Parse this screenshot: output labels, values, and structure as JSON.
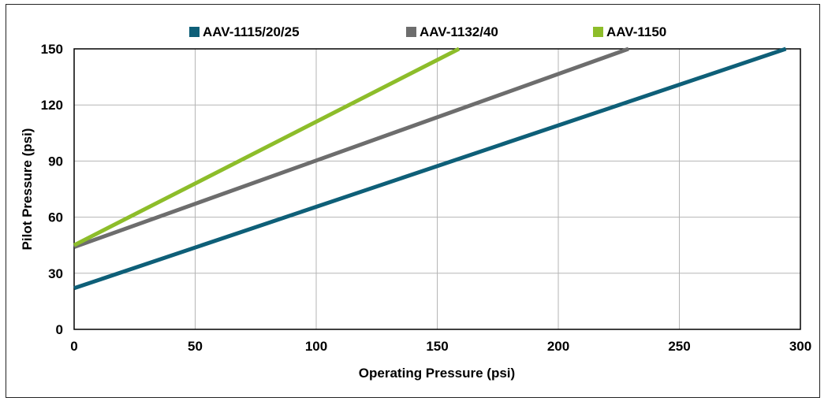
{
  "chart_data": {
    "type": "line",
    "title": "",
    "xlabel": "Operating Pressure (psi)",
    "ylabel": "Pilot Pressure (psi)",
    "xlim": [
      0,
      300
    ],
    "ylim": [
      0,
      150
    ],
    "xticks": [
      0,
      50,
      100,
      150,
      200,
      250,
      300
    ],
    "yticks": [
      0,
      30,
      60,
      90,
      120,
      150
    ],
    "xtick_labels": [
      "0",
      "50",
      "100",
      "150",
      "200",
      "250",
      "300"
    ],
    "ytick_labels": [
      "0",
      "30",
      "60",
      "90",
      "120",
      "150"
    ],
    "grid": true,
    "legend_position": "top",
    "series": [
      {
        "name": "AAV-1115/20/25",
        "color": "#0e5f78",
        "x": [
          0,
          294
        ],
        "y": [
          22,
          150
        ]
      },
      {
        "name": "AAV-1132/40",
        "color": "#6d6d6d",
        "x": [
          0,
          229
        ],
        "y": [
          44,
          150
        ]
      },
      {
        "name": "AAV-1150",
        "color": "#8dbd2a",
        "x": [
          0,
          159
        ],
        "y": [
          45,
          150
        ]
      }
    ]
  }
}
